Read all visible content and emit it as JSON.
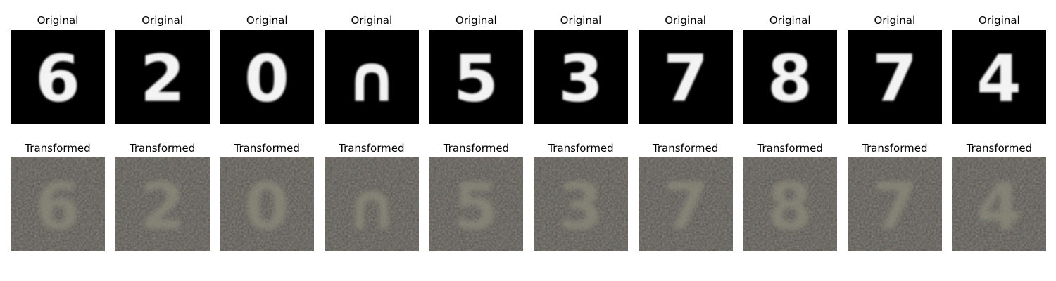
{
  "figure": {
    "row_titles": {
      "original": "Original",
      "transformed": "Transformed"
    },
    "panels": [
      {
        "digit": "6"
      },
      {
        "digit": "2"
      },
      {
        "digit": "0"
      },
      {
        "digit": "∩"
      },
      {
        "digit": "5"
      },
      {
        "digit": "3"
      },
      {
        "digit": "7"
      },
      {
        "digit": "8"
      },
      {
        "digit": "7"
      },
      {
        "digit": "4"
      }
    ],
    "colors": {
      "original_background": "#000000",
      "original_stroke": "#f3f3f3",
      "transformed_background": "#55524d",
      "transformed_stroke": "#8b8a7a"
    }
  }
}
